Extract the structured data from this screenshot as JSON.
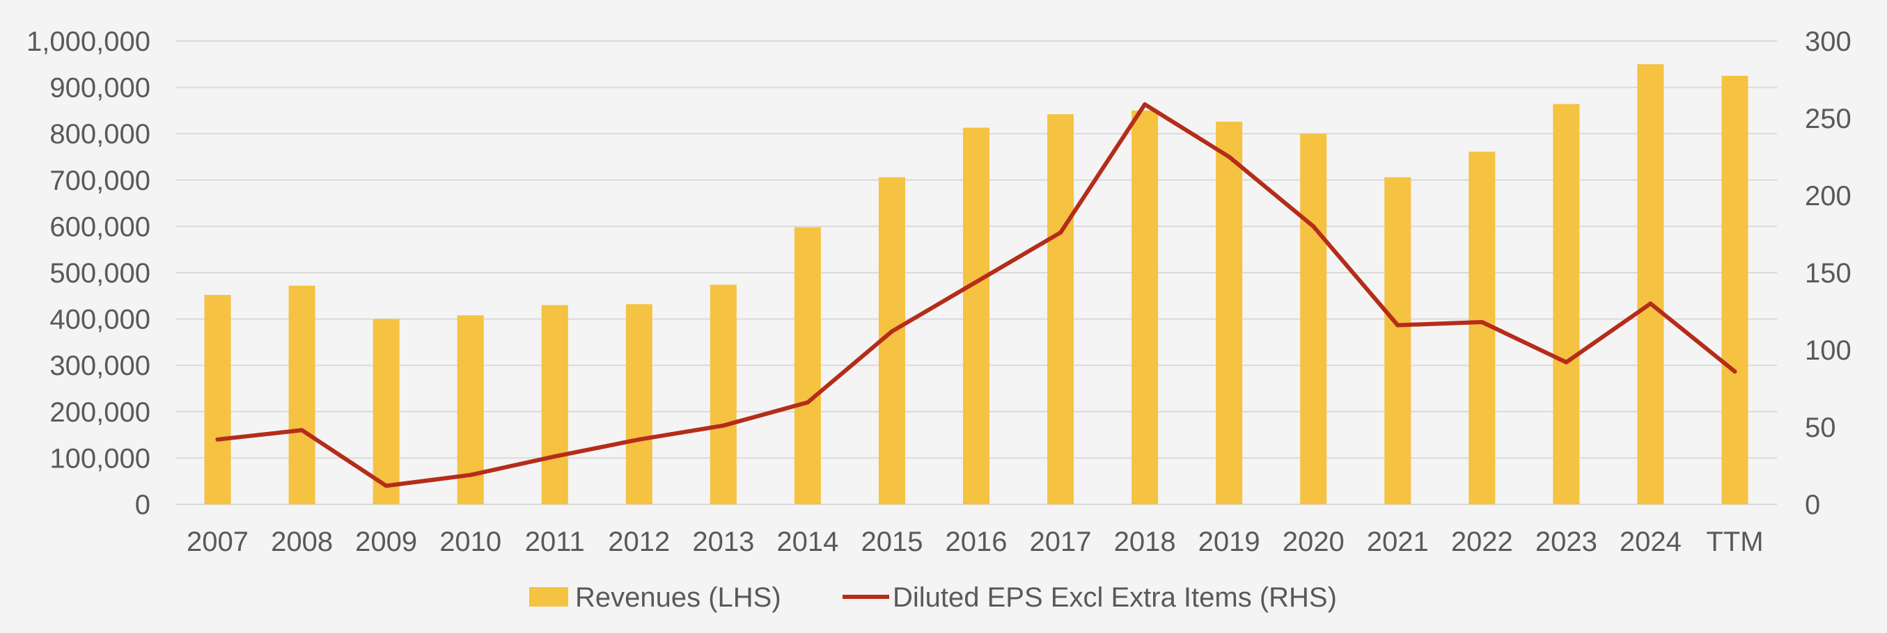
{
  "chart_data": {
    "type": "bar+line",
    "title": "",
    "categories": [
      "2007",
      "2008",
      "2009",
      "2010",
      "2011",
      "2012",
      "2013",
      "2014",
      "2015",
      "2016",
      "2017",
      "2018",
      "2019",
      "2020",
      "2021",
      "2022",
      "2023",
      "2024",
      "TTM"
    ],
    "series": [
      {
        "name": "Revenues (LHS)",
        "type": "bar",
        "axis": "left",
        "color": "#f5c242",
        "values": [
          452000,
          472000,
          400000,
          408000,
          430000,
          432000,
          474000,
          598000,
          706000,
          813000,
          842000,
          850000,
          826000,
          800000,
          706000,
          761000,
          864000,
          950000,
          925000
        ]
      },
      {
        "name": "Diluted EPS Excl Extra Items (RHS)",
        "type": "line",
        "axis": "right",
        "color": "#b52c1a",
        "values": [
          42,
          48,
          12,
          19,
          31,
          42,
          51,
          66,
          112,
          144,
          176,
          259,
          225,
          180,
          116,
          118,
          92,
          130,
          86
        ]
      }
    ],
    "y_left": {
      "min": 0,
      "max": 1000000,
      "ticks": [
        0,
        100000,
        200000,
        300000,
        400000,
        500000,
        600000,
        700000,
        800000,
        900000,
        1000000
      ],
      "tick_labels": [
        "0",
        "100,000",
        "200,000",
        "300,000",
        "400,000",
        "500,000",
        "600,000",
        "700,000",
        "800,000",
        "900,000",
        "1,000,000"
      ]
    },
    "y_right": {
      "min": 0,
      "max": 300,
      "ticks": [
        0,
        50,
        100,
        150,
        200,
        250,
        300
      ],
      "tick_labels": [
        "0",
        "50",
        "100",
        "150",
        "200",
        "250",
        "300"
      ]
    },
    "grid": true,
    "legend": {
      "position": "bottom-center",
      "entries": [
        "Revenues (LHS)",
        "Diluted EPS Excl Extra Items (RHS)"
      ]
    },
    "xlabel": "",
    "ylabel": ""
  },
  "colors": {
    "background": "#f4f4f4",
    "grid": "#d9d9d9",
    "text": "#595959",
    "bar": "#f5c242",
    "line": "#b52c1a"
  }
}
